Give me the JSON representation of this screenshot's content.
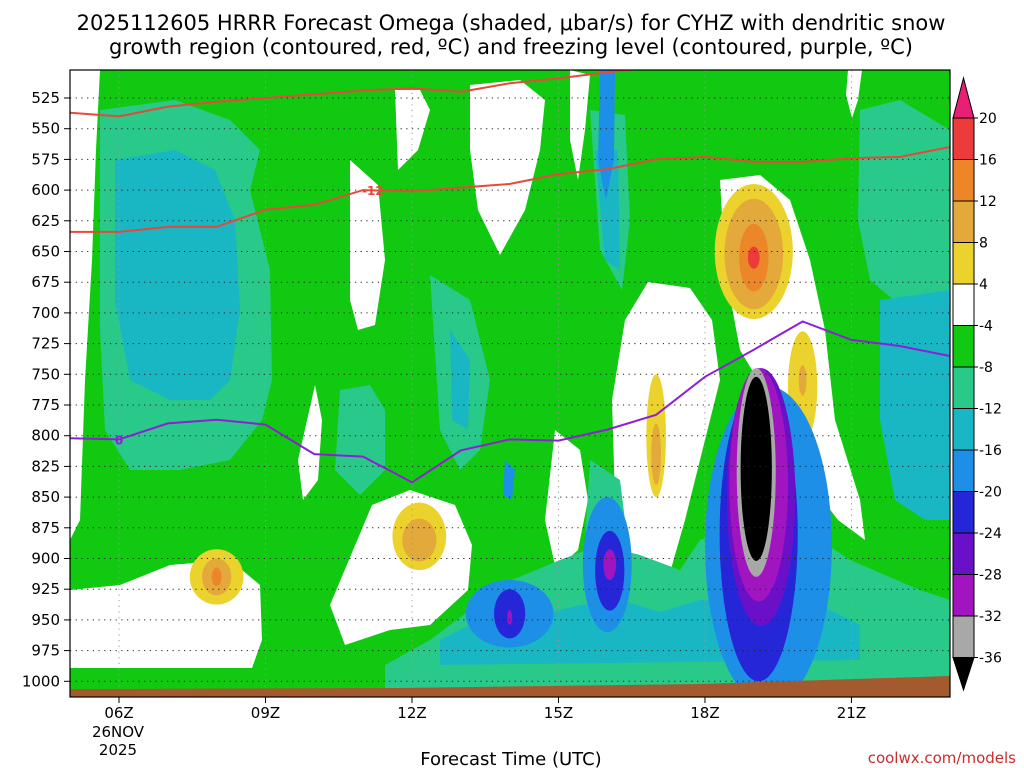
{
  "title_line1": "2025112605 HRRR Forecast Omega (shaded, μbar/s) for CYHZ with dendritic snow",
  "title_line2": "growth region (contoured, red, ºC) and freezing level (contoured, purple, ºC)",
  "xlabel": "Forecast Time (UTC)",
  "credit": "coolwx.com/models",
  "date_label_line1": "26NOV",
  "date_label_line2": "2025",
  "contour_labels": {
    "red": "-12",
    "purple": "0"
  },
  "colors": {
    "white": "#ffffff",
    "green_4_8": "#11c911",
    "teal_8_12": "#29c98a",
    "cyan_12_16": "#19b7c4",
    "blue_16_20": "#1d8fe6",
    "darkblue_20_24": "#2626d9",
    "violet_24_28": "#6a10c8",
    "purple_28_32": "#a015c0",
    "gray_32_36": "#a8a8a8",
    "black_lt_36": "#000000",
    "yellow_4_8": "#ecd22c",
    "gold_8_12": "#e3a93a",
    "orange_12_16": "#ec8629",
    "red_16_20": "#ec3b3b",
    "magenta_gt_20": "#e81f74",
    "ground": "#a35a2f",
    "dgz_line": "#e8483a",
    "freezing_line": "#8f1fd6"
  },
  "chart_data": {
    "type": "heatmap",
    "title": "2025112605 HRRR Forecast Omega (shaded, μbar/s) for CYHZ with dendritic snow growth region (contoured, red, ºC) and freezing level (contoured, purple, ºC)",
    "xlabel": "Forecast Time (UTC)",
    "ylabel": "",
    "x_ticks": [
      "06Z",
      "09Z",
      "12Z",
      "15Z",
      "18Z",
      "21Z"
    ],
    "x_tick_hours": [
      6,
      9,
      12,
      15,
      18,
      21
    ],
    "xlim_hours": [
      5,
      23
    ],
    "y_ticks": [
      525,
      550,
      575,
      600,
      625,
      650,
      675,
      700,
      725,
      750,
      775,
      800,
      825,
      850,
      875,
      900,
      925,
      950,
      975,
      1000
    ],
    "ylim": [
      1000,
      500
    ],
    "colorbar_levels": [
      -36,
      -32,
      -28,
      -24,
      -20,
      -16,
      -12,
      -8,
      -4,
      4,
      8,
      12,
      16,
      20
    ],
    "colorbar_labels": [
      "20",
      "16",
      "12",
      "8",
      "4",
      "-4",
      "-8",
      "-12",
      "-16",
      "-20",
      "-24",
      "-28",
      "-32",
      "-36"
    ],
    "grid": true,
    "ground_pressure": 1000,
    "contours": [
      {
        "label": "-12",
        "color": "red",
        "points": [
          [
            5,
            537
          ],
          [
            6,
            540
          ],
          [
            7,
            532
          ],
          [
            8,
            528
          ],
          [
            9,
            525
          ],
          [
            10,
            522
          ],
          [
            11,
            519
          ],
          [
            12,
            517
          ],
          [
            13,
            520
          ],
          [
            14,
            513
          ],
          [
            15,
            509
          ],
          [
            16,
            504
          ],
          [
            17,
            500
          ]
        ]
      },
      {
        "label": "-12",
        "color": "red",
        "points": [
          [
            5,
            634
          ],
          [
            6,
            634
          ],
          [
            7,
            630
          ],
          [
            8,
            630
          ],
          [
            9,
            616
          ],
          [
            10,
            612
          ],
          [
            11,
            600
          ],
          [
            12,
            601
          ],
          [
            13,
            598
          ],
          [
            14,
            595
          ],
          [
            15,
            587
          ],
          [
            16,
            583
          ],
          [
            17,
            575
          ],
          [
            18,
            573
          ],
          [
            19,
            577
          ],
          [
            20,
            577
          ],
          [
            21,
            574
          ],
          [
            22,
            573
          ],
          [
            23,
            565
          ]
        ]
      },
      {
        "label": "0",
        "color": "purple",
        "points": [
          [
            5,
            802
          ],
          [
            6,
            803
          ],
          [
            7,
            790
          ],
          [
            8,
            787
          ],
          [
            9,
            791
          ],
          [
            10,
            815
          ],
          [
            11,
            817
          ],
          [
            12,
            838
          ],
          [
            13,
            812
          ],
          [
            14,
            803
          ],
          [
            15,
            804
          ],
          [
            16,
            795
          ],
          [
            17,
            783
          ],
          [
            18,
            752
          ],
          [
            19,
            730
          ],
          [
            20,
            707
          ],
          [
            21,
            722
          ],
          [
            22,
            727
          ],
          [
            23,
            735
          ]
        ]
      }
    ],
    "features": [
      {
        "kind": "min",
        "hour": 19.05,
        "pressure": 827,
        "value": -36,
        "rx_h": 0.32,
        "ry_p": 150
      },
      {
        "kind": "min",
        "hour": 19.05,
        "pressure": 830,
        "value": -32,
        "rx_h": 0.4,
        "ry_p": 170
      },
      {
        "kind": "min",
        "hour": 19.1,
        "pressure": 840,
        "value": -28,
        "rx_h": 0.6,
        "ry_p": 190
      },
      {
        "kind": "min",
        "hour": 19.15,
        "pressure": 850,
        "value": -24,
        "rx_h": 0.7,
        "ry_p": 210
      },
      {
        "kind": "min",
        "hour": 19.1,
        "pressure": 880,
        "value": -20,
        "rx_h": 0.8,
        "ry_p": 240
      },
      {
        "kind": "min",
        "hour": 19.3,
        "pressure": 890,
        "value": -16,
        "rx_h": 1.3,
        "ry_p": 260
      },
      {
        "kind": "min",
        "hour": 16.05,
        "pressure": 905,
        "value": -28,
        "rx_h": 0.13,
        "ry_p": 25
      },
      {
        "kind": "min",
        "hour": 16.05,
        "pressure": 910,
        "value": -20,
        "rx_h": 0.3,
        "ry_p": 65
      },
      {
        "kind": "min",
        "hour": 16.0,
        "pressure": 905,
        "value": -16,
        "rx_h": 0.5,
        "ry_p": 110
      },
      {
        "kind": "min",
        "hour": 14.0,
        "pressure": 948,
        "value": -28,
        "rx_h": 0.05,
        "ry_p": 12
      },
      {
        "kind": "min",
        "hour": 14.0,
        "pressure": 945,
        "value": -20,
        "rx_h": 0.32,
        "ry_p": 40
      },
      {
        "kind": "min",
        "hour": 14.0,
        "pressure": 945,
        "value": -16,
        "rx_h": 0.9,
        "ry_p": 55
      },
      {
        "kind": "max",
        "hour": 19.0,
        "pressure": 655,
        "value": 16,
        "rx_h": 0.12,
        "ry_p": 18
      },
      {
        "kind": "max",
        "hour": 19.0,
        "pressure": 655,
        "value": 12,
        "rx_h": 0.3,
        "ry_p": 55
      },
      {
        "kind": "max",
        "hour": 19.0,
        "pressure": 652,
        "value": 8,
        "rx_h": 0.6,
        "ry_p": 90
      },
      {
        "kind": "max",
        "hour": 19.0,
        "pressure": 650,
        "value": 4,
        "rx_h": 0.8,
        "ry_p": 110
      },
      {
        "kind": "max",
        "hour": 8.0,
        "pressure": 915,
        "value": 12,
        "rx_h": 0.1,
        "ry_p": 15
      },
      {
        "kind": "max",
        "hour": 8.0,
        "pressure": 915,
        "value": 8,
        "rx_h": 0.3,
        "ry_p": 30
      },
      {
        "kind": "max",
        "hour": 8.0,
        "pressure": 915,
        "value": 4,
        "rx_h": 0.55,
        "ry_p": 45
      },
      {
        "kind": "max",
        "hour": 12.15,
        "pressure": 885,
        "value": 8,
        "rx_h": 0.35,
        "ry_p": 35
      },
      {
        "kind": "max",
        "hour": 12.15,
        "pressure": 882,
        "value": 4,
        "rx_h": 0.55,
        "ry_p": 55
      },
      {
        "kind": "max",
        "hour": 17.0,
        "pressure": 815,
        "value": 8,
        "rx_h": 0.1,
        "ry_p": 50
      },
      {
        "kind": "max",
        "hour": 17.0,
        "pressure": 800,
        "value": 4,
        "rx_h": 0.2,
        "ry_p": 100
      },
      {
        "kind": "max",
        "hour": 20.0,
        "pressure": 755,
        "value": 8,
        "rx_h": 0.08,
        "ry_p": 25
      },
      {
        "kind": "max",
        "hour": 20.0,
        "pressure": 760,
        "value": 4,
        "rx_h": 0.3,
        "ry_p": 90
      }
    ]
  }
}
